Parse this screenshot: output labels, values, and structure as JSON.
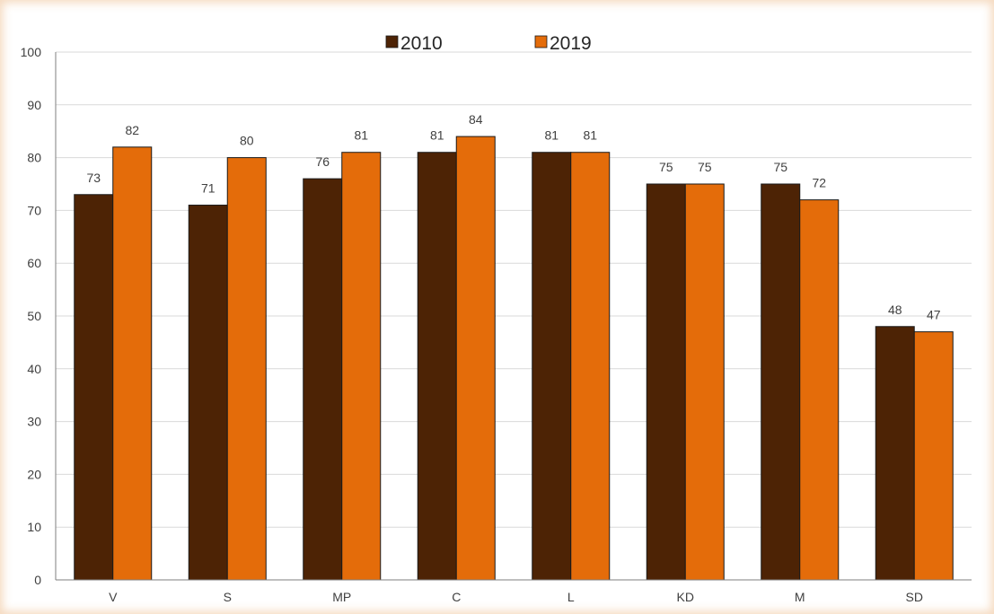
{
  "chart_data": {
    "type": "bar",
    "categories": [
      "V",
      "S",
      "MP",
      "C",
      "L",
      "KD",
      "M",
      "SD"
    ],
    "series": [
      {
        "name": "2010",
        "color": "#4d2305",
        "values": [
          73,
          71,
          76,
          81,
          81,
          75,
          75,
          48
        ]
      },
      {
        "name": "2019",
        "color": "#e46c0a",
        "values": [
          82,
          80,
          81,
          84,
          81,
          75,
          72,
          47
        ]
      }
    ],
    "title": "",
    "xlabel": "",
    "ylabel": "",
    "ylim": [
      0,
      100
    ],
    "yticks": [
      0,
      10,
      20,
      30,
      40,
      50,
      60,
      70,
      80,
      90,
      100
    ],
    "grid": true,
    "legend": "top-center",
    "data_labels": true
  }
}
